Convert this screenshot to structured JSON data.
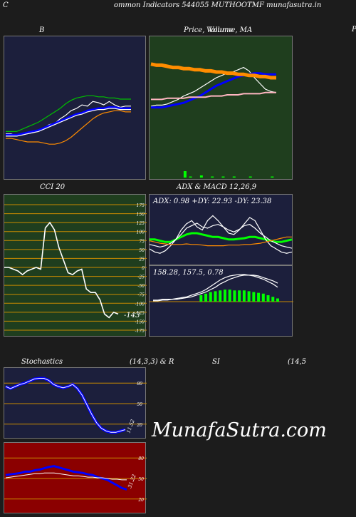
{
  "header": {
    "text": "ommon  Indicators 544055 MUTHOOTMF munafasutra.in",
    "corner_left": "C",
    "corner_right": "P"
  },
  "titles": {
    "bb": "B",
    "price": "Price,",
    "price_overlay": "Volume,  MA",
    "price_overlay_ghost": "Volume",
    "cci": "CCI 20",
    "adx_macd": "ADX  & MACD 12,26,9",
    "stoch_left": "Stochastics",
    "stoch_right": "(14,3,3) & R",
    "rsi_left": "SI",
    "rsi_right": "(14,5"
  },
  "watermark": "MunafaSutra.com",
  "colors": {
    "navy": "#1c1f3c",
    "green": "#1f3e1e",
    "red": "#8b0000",
    "orange": "#b8860b",
    "blue": "#0000ff",
    "lime": "#00ff00"
  },
  "chart_data": [
    {
      "type": "line",
      "name": "bollinger",
      "series": [
        {
          "color": "#ffffff",
          "values": [
            28,
            28,
            26,
            27,
            28,
            29,
            31,
            33,
            36,
            37,
            41,
            44,
            48,
            50,
            53,
            52,
            56,
            55,
            53,
            56,
            53,
            51,
            52,
            52
          ]
        },
        {
          "color": "#00c000",
          "values": [
            30,
            30,
            30,
            32,
            34,
            36,
            38,
            41,
            44,
            47,
            50,
            54,
            57,
            59,
            60,
            61,
            61,
            60,
            60,
            59,
            59,
            58,
            58,
            58
          ]
        },
        {
          "color": "#0000ff",
          "values": [
            27,
            27,
            27,
            28,
            29,
            30,
            31,
            33,
            35,
            37,
            39,
            41,
            43,
            45,
            46,
            48,
            49,
            50,
            50,
            51,
            51,
            50,
            50,
            50
          ]
        },
        {
          "color": "#ffffff",
          "values": [
            26,
            26,
            26,
            27,
            28,
            29,
            30,
            32,
            34,
            36,
            38,
            40,
            42,
            44,
            45,
            47,
            48,
            49,
            49,
            50,
            50,
            49,
            49,
            49
          ]
        },
        {
          "color": "#ff8c00",
          "values": [
            24,
            24,
            23,
            22,
            21,
            21,
            21,
            20,
            19,
            19,
            20,
            22,
            25,
            29,
            33,
            37,
            41,
            44,
            46,
            47,
            48,
            48,
            47,
            47
          ]
        }
      ],
      "ylim": [
        0,
        100
      ]
    },
    {
      "type": "line",
      "name": "price_ma_volume",
      "series": [
        {
          "color": "#ffffff",
          "values": [
            45,
            46,
            46,
            47,
            49,
            51,
            54,
            56,
            58,
            61,
            64,
            67,
            70,
            72,
            74,
            75,
            77,
            79,
            76,
            70,
            65,
            60,
            58,
            57
          ]
        },
        {
          "color": "#0000ff",
          "values": [
            44,
            44,
            44,
            45,
            46,
            47,
            48,
            50,
            52,
            54,
            57,
            60,
            63,
            65,
            67,
            69,
            71,
            72,
            73,
            74,
            74,
            73,
            73,
            73
          ]
        },
        {
          "color": "#ff8c00",
          "values": [
            82,
            81,
            81,
            80,
            79,
            79,
            78,
            78,
            77,
            77,
            76,
            76,
            75,
            75,
            74,
            74,
            73,
            73,
            72,
            72,
            71,
            71,
            70,
            70
          ]
        },
        {
          "color": "#ffb6c1",
          "values": [
            51,
            51,
            51,
            52,
            52,
            52,
            52,
            53,
            53,
            53,
            53,
            54,
            54,
            54,
            55,
            55,
            55,
            56,
            56,
            56,
            56,
            57,
            57,
            57
          ]
        }
      ],
      "volume": [
        0,
        0,
        0,
        0,
        0,
        0,
        6,
        1,
        0,
        2,
        0,
        1,
        0,
        1,
        0,
        1,
        0,
        0,
        1,
        0,
        0,
        0,
        1,
        0
      ],
      "ylim": [
        0,
        100
      ]
    },
    {
      "type": "line",
      "name": "cci",
      "ticks": [
        "175",
        "150",
        "125",
        "100",
        "75",
        "50",
        "25",
        "0",
        "-25",
        "-50",
        "-75",
        "-100",
        "-125",
        "-150",
        "-175"
      ],
      "values": [
        0,
        0,
        -5,
        -10,
        -20,
        -10,
        -5,
        0,
        -5,
        110,
        125,
        105,
        55,
        20,
        -15,
        -20,
        -10,
        -5,
        -60,
        -70,
        -70,
        -90,
        -130,
        -140,
        -125,
        -130
      ],
      "last_label": "-143",
      "ylim": [
        -175,
        175
      ]
    },
    {
      "type": "line",
      "name": "adx",
      "label": "ADX: 0.98  +DY: 22.93 -DY: 23.38",
      "series": [
        {
          "color": "#00ff00",
          "values": [
            40,
            40,
            38,
            36,
            36,
            40,
            44,
            48,
            50,
            50,
            48,
            46,
            44,
            44,
            42,
            40,
            40,
            41,
            42,
            44,
            44,
            42,
            40,
            38,
            36,
            36,
            38,
            40
          ]
        },
        {
          "color": "#ffffff",
          "values": [
            25,
            20,
            18,
            22,
            30,
            40,
            55,
            65,
            70,
            60,
            55,
            70,
            78,
            70,
            60,
            50,
            48,
            55,
            65,
            75,
            70,
            55,
            40,
            30,
            25,
            20,
            18,
            20
          ]
        },
        {
          "color": "#ffffff",
          "values": [
            32,
            30,
            28,
            30,
            34,
            40,
            48,
            58,
            62,
            66,
            60,
            58,
            62,
            64,
            60,
            55,
            52,
            56,
            62,
            64,
            58,
            50,
            44,
            38,
            34,
            30,
            28,
            26
          ]
        },
        {
          "color": "#ff8c00",
          "values": [
            38,
            36,
            34,
            33,
            32,
            32,
            32,
            33,
            32,
            32,
            31,
            30,
            30,
            30,
            30,
            31,
            31,
            31,
            32,
            32,
            33,
            34,
            36,
            38,
            40,
            42,
            44,
            44
          ]
        }
      ],
      "ylim": [
        0,
        100
      ]
    },
    {
      "type": "bar",
      "name": "macd",
      "label": "158.28,  157.5,  0.78",
      "macd": [
        2,
        2,
        3,
        3,
        3,
        4,
        5,
        6,
        8,
        10,
        12,
        15,
        19,
        23,
        27,
        30,
        32,
        33,
        34,
        34,
        33,
        32,
        30,
        28,
        25,
        22,
        18
      ],
      "signal": [
        1,
        1,
        2,
        2,
        3,
        3,
        4,
        5,
        6,
        8,
        10,
        12,
        15,
        18,
        22,
        25,
        28,
        30,
        32,
        33,
        33,
        33,
        32,
        30,
        28,
        26,
        23
      ],
      "histogram": [
        0,
        0,
        0,
        0,
        0,
        0,
        0,
        0,
        0,
        0,
        8,
        10,
        12,
        13,
        14,
        15,
        15,
        14,
        14,
        14,
        13,
        12,
        11,
        10,
        8,
        6,
        4
      ],
      "ylim": [
        0,
        40
      ]
    },
    {
      "type": "line",
      "name": "stochastics",
      "ticks": [
        "80",
        "50",
        "20"
      ],
      "values": [
        75,
        72,
        75,
        78,
        80,
        83,
        86,
        87,
        87,
        84,
        78,
        75,
        73,
        75,
        78,
        72,
        62,
        48,
        34,
        22,
        14,
        10,
        8,
        8,
        10,
        12
      ],
      "last_label": "11.52",
      "ylim": [
        0,
        100
      ]
    },
    {
      "type": "line",
      "name": "rsi",
      "ticks": [
        "80",
        "50",
        "20"
      ],
      "series": [
        {
          "color": "#0000ff",
          "values": [
            55,
            56,
            57,
            58,
            60,
            60,
            62,
            63,
            65,
            67,
            68,
            66,
            64,
            62,
            60,
            59,
            58,
            56,
            55,
            52,
            50,
            48,
            44,
            40,
            36,
            34
          ]
        },
        {
          "color": "#ffffff",
          "values": [
            51,
            52,
            53,
            54,
            55,
            56,
            57,
            57,
            58,
            58,
            58,
            57,
            56,
            55,
            54,
            54,
            53,
            52,
            52,
            51,
            51,
            50,
            49,
            49,
            48,
            48
          ]
        }
      ],
      "last_label": "31.22",
      "ylim": [
        0,
        100
      ]
    }
  ]
}
